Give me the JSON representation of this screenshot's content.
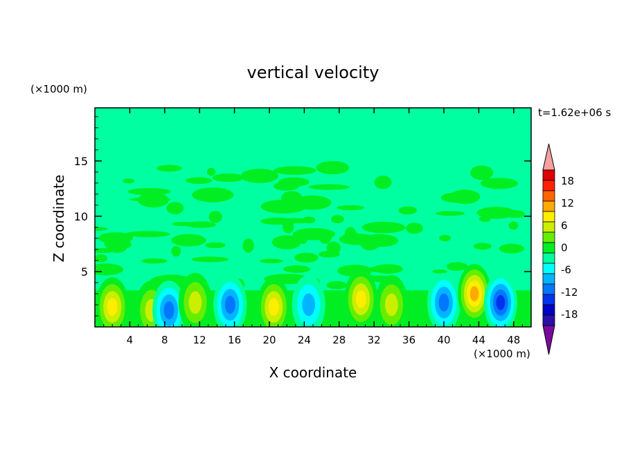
{
  "chart_data": {
    "type": "heatmap",
    "title": "vertical velocity",
    "xlabel": "X coordinate",
    "ylabel": "Z coordinate",
    "x_unit": "(×1000 m)",
    "y_unit": "(×1000 m)",
    "time_label": "t=1.62e+06 s",
    "xlim": [
      0,
      50
    ],
    "ylim": [
      0,
      19.8
    ],
    "x_ticks": [
      4,
      8,
      12,
      16,
      20,
      24,
      28,
      32,
      36,
      40,
      44,
      48
    ],
    "y_ticks": [
      5,
      10,
      15
    ],
    "colorbar": {
      "tick_labels": [
        18,
        12,
        6,
        0,
        -6,
        -12,
        -18
      ],
      "levels": [
        -21,
        -18,
        -15,
        -12,
        -9,
        -6,
        -3,
        0,
        3,
        6,
        9,
        12,
        15,
        18,
        21
      ],
      "colors": [
        "#7a0a9e",
        "#2a0fa8",
        "#0000c8",
        "#0033ee",
        "#0077ff",
        "#00b4ff",
        "#00ffff",
        "#00ffa0",
        "#00ee22",
        "#66ee00",
        "#ccee00",
        "#ffee00",
        "#ffaa00",
        "#ff6600",
        "#ff2200",
        "#dd0000",
        "#f5a0a0"
      ]
    },
    "cells": [
      {
        "x": 2,
        "z": 1.8,
        "value": 9
      },
      {
        "x": 6.5,
        "z": 1.5,
        "value": 6
      },
      {
        "x": 8.5,
        "z": 1.5,
        "value": -9
      },
      {
        "x": 11.5,
        "z": 2.2,
        "value": 7
      },
      {
        "x": 15.5,
        "z": 2,
        "value": -8
      },
      {
        "x": 20.5,
        "z": 1.8,
        "value": 9
      },
      {
        "x": 24.5,
        "z": 2,
        "value": -6
      },
      {
        "x": 30.5,
        "z": 2.5,
        "value": 9
      },
      {
        "x": 34,
        "z": 2,
        "value": 5
      },
      {
        "x": 40,
        "z": 2.2,
        "value": -10
      },
      {
        "x": 43.5,
        "z": 3,
        "value": 11
      },
      {
        "x": 46.5,
        "z": 2.2,
        "value": -11
      }
    ]
  }
}
